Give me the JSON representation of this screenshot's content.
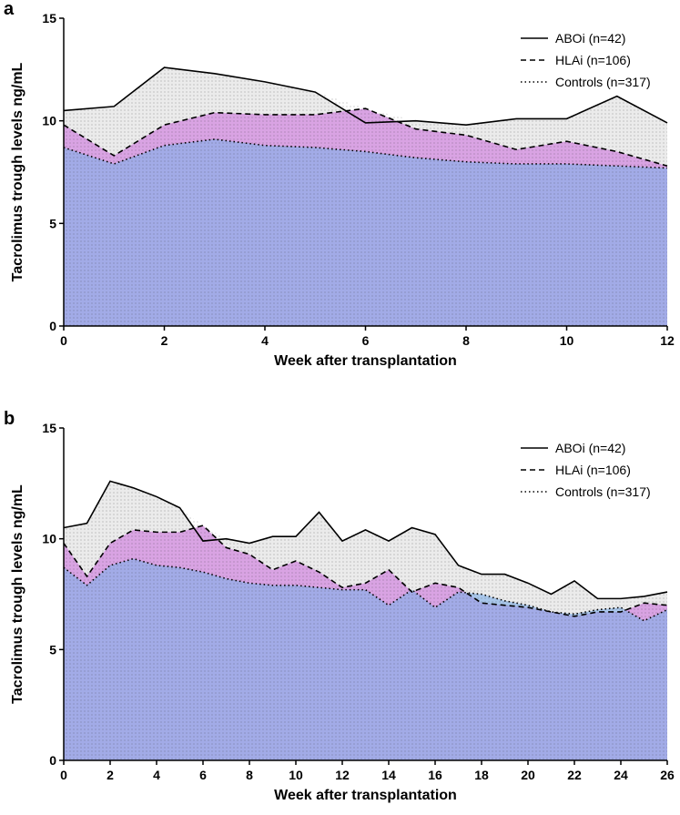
{
  "chart_data": [
    {
      "type": "area",
      "panel_label": "a",
      "xlabel": "Week after transplantation",
      "ylabel": "Tacrolimus trough levels ng/mL",
      "x": [
        0,
        1,
        2,
        3,
        4,
        5,
        6,
        7,
        8,
        9,
        10,
        11,
        12
      ],
      "xlim": [
        0,
        12
      ],
      "xticks": [
        0,
        2,
        4,
        6,
        8,
        10,
        12
      ],
      "ylim": [
        0,
        15
      ],
      "yticks": [
        0,
        5,
        10,
        15
      ],
      "legend": "top-right",
      "series": [
        {
          "name": "ABOi (n=42)",
          "color": "#ebebeb",
          "line_style": "solid",
          "values": [
            10.5,
            10.7,
            12.6,
            12.3,
            11.9,
            11.4,
            9.9,
            10.0,
            9.8,
            10.1,
            10.1,
            11.2,
            9.9
          ]
        },
        {
          "name": "HLAi (n=106)",
          "color": "#d9a3e3",
          "line_style": "dashed",
          "values": [
            9.8,
            8.3,
            9.8,
            10.4,
            10.3,
            10.3,
            10.6,
            9.6,
            9.3,
            8.6,
            9.0,
            8.5,
            7.8
          ]
        },
        {
          "name": "Controls (n=317)",
          "color": "#7fb0ea",
          "line_style": "dotted",
          "values": [
            8.7,
            7.9,
            8.8,
            9.1,
            8.8,
            8.7,
            8.5,
            8.2,
            8.0,
            7.9,
            7.9,
            7.8,
            7.7
          ]
        }
      ]
    },
    {
      "type": "area",
      "panel_label": "b",
      "xlabel": "Week after transplantation",
      "ylabel": "Tacrolimus trough levels ng/mL",
      "x": [
        0,
        1,
        2,
        3,
        4,
        5,
        6,
        7,
        8,
        9,
        10,
        11,
        12,
        13,
        14,
        15,
        16,
        17,
        18,
        19,
        20,
        21,
        22,
        23,
        24,
        25,
        26
      ],
      "xlim": [
        0,
        26
      ],
      "xticks": [
        0,
        2,
        4,
        6,
        8,
        10,
        12,
        14,
        16,
        18,
        20,
        22,
        24,
        26
      ],
      "ylim": [
        0,
        15
      ],
      "yticks": [
        0,
        5,
        10,
        15
      ],
      "legend": "top-right",
      "series": [
        {
          "name": "ABOi (n=42)",
          "color": "#ebebeb",
          "line_style": "solid",
          "values": [
            10.5,
            10.7,
            12.6,
            12.3,
            11.9,
            11.4,
            9.9,
            10.0,
            9.8,
            10.1,
            10.1,
            11.2,
            9.9,
            10.4,
            9.9,
            10.5,
            10.2,
            8.8,
            8.4,
            8.4,
            8.0,
            7.5,
            8.1,
            7.3,
            7.3,
            7.4,
            7.6
          ]
        },
        {
          "name": "HLAi (n=106)",
          "color": "#d9a3e3",
          "line_style": "dashed",
          "values": [
            9.8,
            8.3,
            9.8,
            10.4,
            10.3,
            10.3,
            10.6,
            9.6,
            9.3,
            8.6,
            9.0,
            8.5,
            7.8,
            8.0,
            8.6,
            7.6,
            8.0,
            7.8,
            7.1,
            7.0,
            6.9,
            6.7,
            6.5,
            6.7,
            6.7,
            7.1,
            7.0
          ]
        },
        {
          "name": "Controls (n=317)",
          "color": "#7fb0ea",
          "line_style": "dotted",
          "values": [
            8.7,
            7.9,
            8.8,
            9.1,
            8.8,
            8.7,
            8.5,
            8.2,
            8.0,
            7.9,
            7.9,
            7.8,
            7.7,
            7.7,
            7.0,
            7.7,
            6.9,
            7.6,
            7.5,
            7.2,
            7.0,
            6.7,
            6.6,
            6.8,
            6.9,
            6.3,
            6.8
          ]
        }
      ]
    }
  ]
}
